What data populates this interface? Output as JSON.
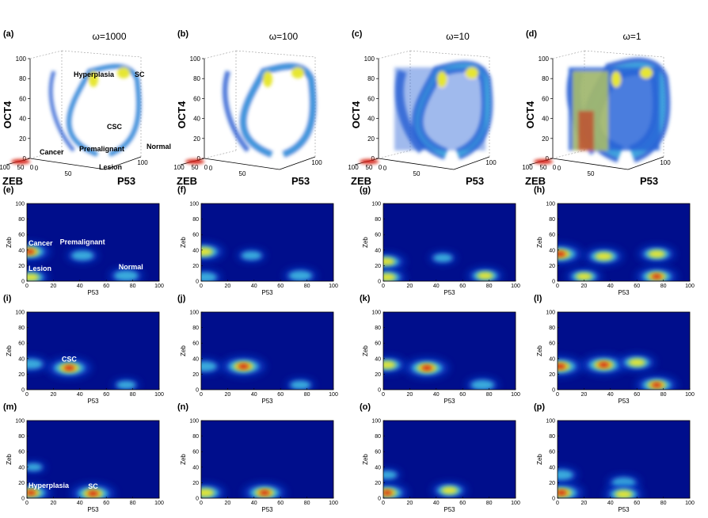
{
  "figure": {
    "panels_3d": [
      {
        "label": "(a)",
        "title": "ω=1000",
        "zlabel": "OCT4",
        "xlabel": "ZEB",
        "ylabel": "P53",
        "annotations": [
          "Hyperplasia",
          "SC",
          "CSC",
          "Premalignant",
          "Normal",
          "Cancer",
          "Lesion"
        ]
      },
      {
        "label": "(b)",
        "title": "ω=100",
        "zlabel": "OCT4",
        "xlabel": "ZEB",
        "ylabel": "P53",
        "annotations": []
      },
      {
        "label": "(c)",
        "title": "ω=10",
        "zlabel": "OCT4",
        "xlabel": "ZEB",
        "ylabel": "P53",
        "annotations": []
      },
      {
        "label": "(d)",
        "title": "ω=1",
        "zlabel": "OCT4",
        "xlabel": "ZEB",
        "ylabel": "P53",
        "annotations": []
      }
    ],
    "tick_labels_3d": {
      "z": [
        "0",
        "20",
        "40",
        "60",
        "80",
        "100"
      ],
      "zeb": [
        "100",
        "50",
        "0"
      ],
      "p53": [
        "0",
        "50",
        "100"
      ]
    },
    "panels_2d": [
      {
        "label": "(e)",
        "annotations": [
          "Cancer",
          "Premalignant",
          "Lesion",
          "Normal"
        ]
      },
      {
        "label": "(f)",
        "annotations": []
      },
      {
        "label": "(g)",
        "annotations": []
      },
      {
        "label": "(h)",
        "annotations": []
      },
      {
        "label": "(i)",
        "annotations": [
          "CSC"
        ]
      },
      {
        "label": "(j)",
        "annotations": []
      },
      {
        "label": "(k)",
        "annotations": []
      },
      {
        "label": "(l)",
        "annotations": []
      },
      {
        "label": "(m)",
        "annotations": [
          "Hyperplasia",
          "SC"
        ]
      },
      {
        "label": "(n)",
        "annotations": []
      },
      {
        "label": "(o)",
        "annotations": []
      },
      {
        "label": "(p)",
        "annotations": []
      }
    ],
    "axis_2d": {
      "xlabel": "P53",
      "ylabel": "Zeb",
      "xticks": [
        "0",
        "20",
        "40",
        "60",
        "80",
        "100"
      ],
      "yticks": [
        "0",
        "20",
        "40",
        "60",
        "80",
        "100"
      ]
    }
  },
  "colors": {
    "background": "#000e8c",
    "low": "#0a3cc8",
    "mid": "#3fb8e0",
    "high": "#e6e633",
    "peak": "#d41a0a"
  },
  "chart_data": [
    {
      "type": "heatmap",
      "panel": "(e)",
      "omega": 1000,
      "xlim": [
        0,
        100
      ],
      "ylim": [
        0,
        100
      ],
      "blobs": [
        {
          "label": "Premalignant",
          "x": 42,
          "y": 33,
          "intensity": 0.55
        },
        {
          "label": "Normal",
          "x": 75,
          "y": 7,
          "intensity": 0.65
        },
        {
          "label": "Cancer",
          "x": 2,
          "y": 38,
          "intensity": 0.9
        },
        {
          "label": "Lesion",
          "x": 3,
          "y": 5,
          "intensity": 0.7
        }
      ]
    },
    {
      "type": "heatmap",
      "panel": "(f)",
      "omega": 100,
      "xlim": [
        0,
        100
      ],
      "ylim": [
        0,
        100
      ],
      "blobs": [
        {
          "x": 38,
          "y": 33,
          "intensity": 0.45
        },
        {
          "x": 75,
          "y": 7,
          "intensity": 0.6
        },
        {
          "x": 2,
          "y": 38,
          "intensity": 0.85
        },
        {
          "x": 3,
          "y": 5,
          "intensity": 0.6
        }
      ]
    },
    {
      "type": "heatmap",
      "panel": "(g)",
      "omega": 10,
      "xlim": [
        0,
        100
      ],
      "ylim": [
        0,
        100
      ],
      "blobs": [
        {
          "x": 45,
          "y": 30,
          "intensity": 0.4
        },
        {
          "x": 77,
          "y": 7,
          "intensity": 0.7
        },
        {
          "x": 2,
          "y": 25,
          "intensity": 0.8
        },
        {
          "x": 3,
          "y": 5,
          "intensity": 0.75
        }
      ]
    },
    {
      "type": "heatmap",
      "panel": "(h)",
      "omega": 1,
      "xlim": [
        0,
        100
      ],
      "ylim": [
        0,
        100
      ],
      "blobs": [
        {
          "x": 35,
          "y": 32,
          "intensity": 0.8
        },
        {
          "x": 75,
          "y": 35,
          "intensity": 0.75
        },
        {
          "x": 2,
          "y": 35,
          "intensity": 1.0
        },
        {
          "x": 75,
          "y": 6,
          "intensity": 0.9
        },
        {
          "x": 20,
          "y": 6,
          "intensity": 0.7
        }
      ]
    },
    {
      "type": "heatmap",
      "panel": "(i)",
      "omega": 1000,
      "xlim": [
        0,
        100
      ],
      "ylim": [
        0,
        100
      ],
      "blobs": [
        {
          "label": "CSC",
          "x": 32,
          "y": 28,
          "intensity": 1.0
        },
        {
          "x": 3,
          "y": 33,
          "intensity": 0.6
        },
        {
          "x": 75,
          "y": 6,
          "intensity": 0.4
        }
      ]
    },
    {
      "type": "heatmap",
      "panel": "(j)",
      "omega": 100,
      "xlim": [
        0,
        100
      ],
      "ylim": [
        0,
        100
      ],
      "blobs": [
        {
          "x": 32,
          "y": 30,
          "intensity": 1.0
        },
        {
          "x": 3,
          "y": 30,
          "intensity": 0.6
        },
        {
          "x": 75,
          "y": 6,
          "intensity": 0.45
        }
      ]
    },
    {
      "type": "heatmap",
      "panel": "(k)",
      "omega": 10,
      "xlim": [
        0,
        100
      ],
      "ylim": [
        0,
        100
      ],
      "blobs": [
        {
          "x": 33,
          "y": 28,
          "intensity": 1.0
        },
        {
          "x": 3,
          "y": 32,
          "intensity": 0.75
        },
        {
          "x": 75,
          "y": 6,
          "intensity": 0.6
        }
      ]
    },
    {
      "type": "heatmap",
      "panel": "(l)",
      "omega": 1,
      "xlim": [
        0,
        100
      ],
      "ylim": [
        0,
        100
      ],
      "blobs": [
        {
          "x": 35,
          "y": 32,
          "intensity": 1.0
        },
        {
          "x": 2,
          "y": 30,
          "intensity": 1.0
        },
        {
          "x": 60,
          "y": 35,
          "intensity": 0.75
        },
        {
          "x": 75,
          "y": 6,
          "intensity": 0.9
        }
      ]
    },
    {
      "type": "heatmap",
      "panel": "(m)",
      "omega": 1000,
      "xlim": [
        0,
        100
      ],
      "ylim": [
        0,
        100
      ],
      "blobs": [
        {
          "label": "SC",
          "x": 50,
          "y": 6,
          "intensity": 1.0
        },
        {
          "label": "Hyperplasia",
          "x": 3,
          "y": 7,
          "intensity": 0.9
        },
        {
          "x": 5,
          "y": 40,
          "intensity": 0.3
        }
      ]
    },
    {
      "type": "heatmap",
      "panel": "(n)",
      "omega": 100,
      "xlim": [
        0,
        100
      ],
      "ylim": [
        0,
        100
      ],
      "blobs": [
        {
          "x": 48,
          "y": 7,
          "intensity": 0.95
        },
        {
          "x": 3,
          "y": 7,
          "intensity": 0.85
        }
      ]
    },
    {
      "type": "heatmap",
      "panel": "(o)",
      "omega": 10,
      "xlim": [
        0,
        100
      ],
      "ylim": [
        0,
        100
      ],
      "blobs": [
        {
          "x": 50,
          "y": 10,
          "intensity": 0.7
        },
        {
          "x": 3,
          "y": 7,
          "intensity": 0.9
        },
        {
          "x": 3,
          "y": 30,
          "intensity": 0.4
        }
      ]
    },
    {
      "type": "heatmap",
      "panel": "(p)",
      "omega": 1,
      "xlim": [
        0,
        100
      ],
      "ylim": [
        0,
        100
      ],
      "blobs": [
        {
          "x": 50,
          "y": 20,
          "intensity": 0.6
        },
        {
          "x": 3,
          "y": 7,
          "intensity": 1.0
        },
        {
          "x": 50,
          "y": 5,
          "intensity": 0.8
        },
        {
          "x": 3,
          "y": 30,
          "intensity": 0.6
        }
      ]
    }
  ]
}
